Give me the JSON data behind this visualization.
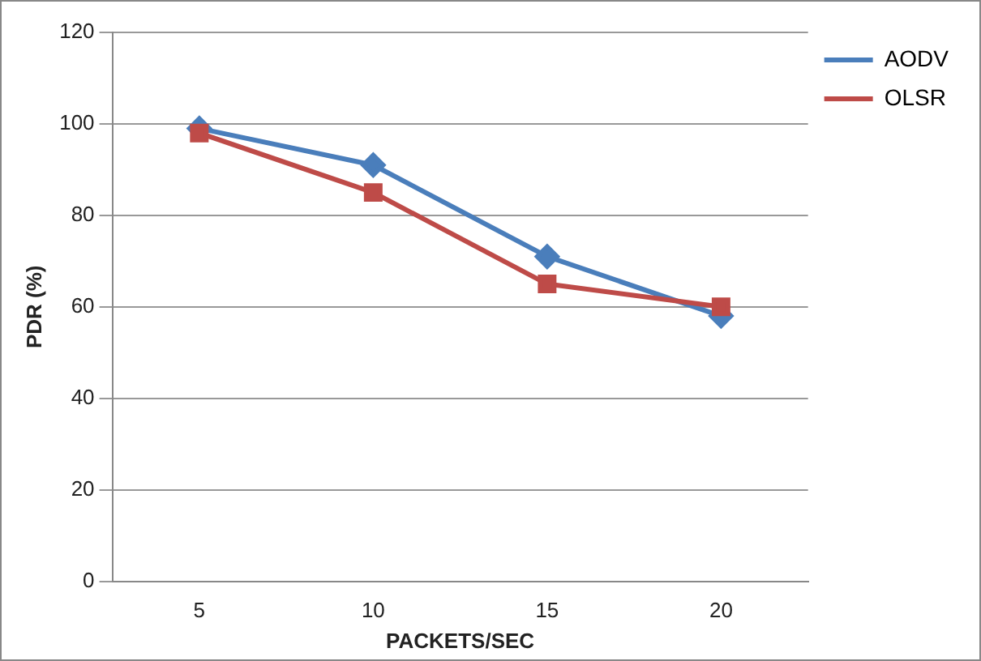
{
  "chart_data": {
    "type": "line",
    "xlabel": "PACKETS/SEC",
    "ylabel": "PDR (%)",
    "categories": [
      "5",
      "10",
      "15",
      "20"
    ],
    "series": [
      {
        "name": "AODV",
        "color": "#4a7ebb",
        "values": [
          99,
          91,
          71,
          58
        ],
        "marker": "diamond"
      },
      {
        "name": "OLSR",
        "color": "#be4b48",
        "values": [
          98,
          85,
          65,
          60
        ],
        "marker": "square"
      }
    ],
    "ylim": [
      0,
      120
    ],
    "yticks": [
      0,
      20,
      40,
      60,
      80,
      100,
      120
    ],
    "grid": "y",
    "legend": "top right",
    "line_style": "solid"
  }
}
